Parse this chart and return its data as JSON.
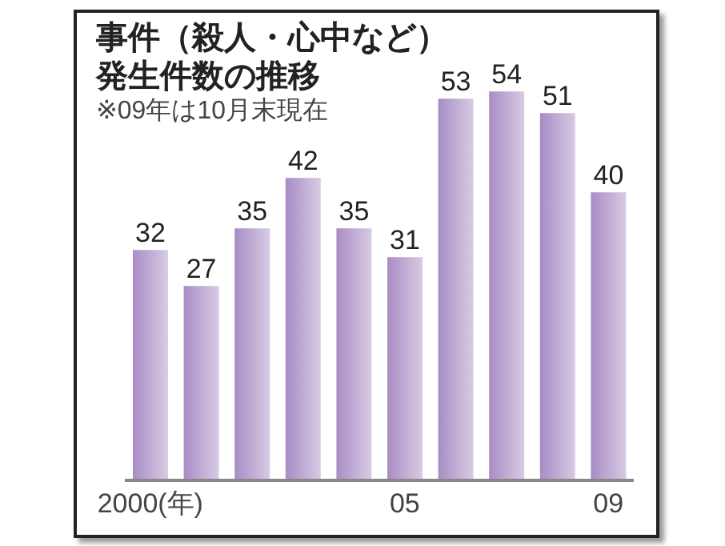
{
  "chart_data": {
    "type": "bar",
    "title": "事件（殺人・心中など）発生件数の推移",
    "subtitle": "※09年は10月末現在",
    "categories": [
      "2000(年)",
      null,
      null,
      null,
      null,
      "05",
      null,
      null,
      null,
      "09"
    ],
    "values": [
      32,
      27,
      35,
      42,
      35,
      31,
      53,
      54,
      51,
      40
    ],
    "color": "#a88cc4",
    "data_labels": true
  }
}
